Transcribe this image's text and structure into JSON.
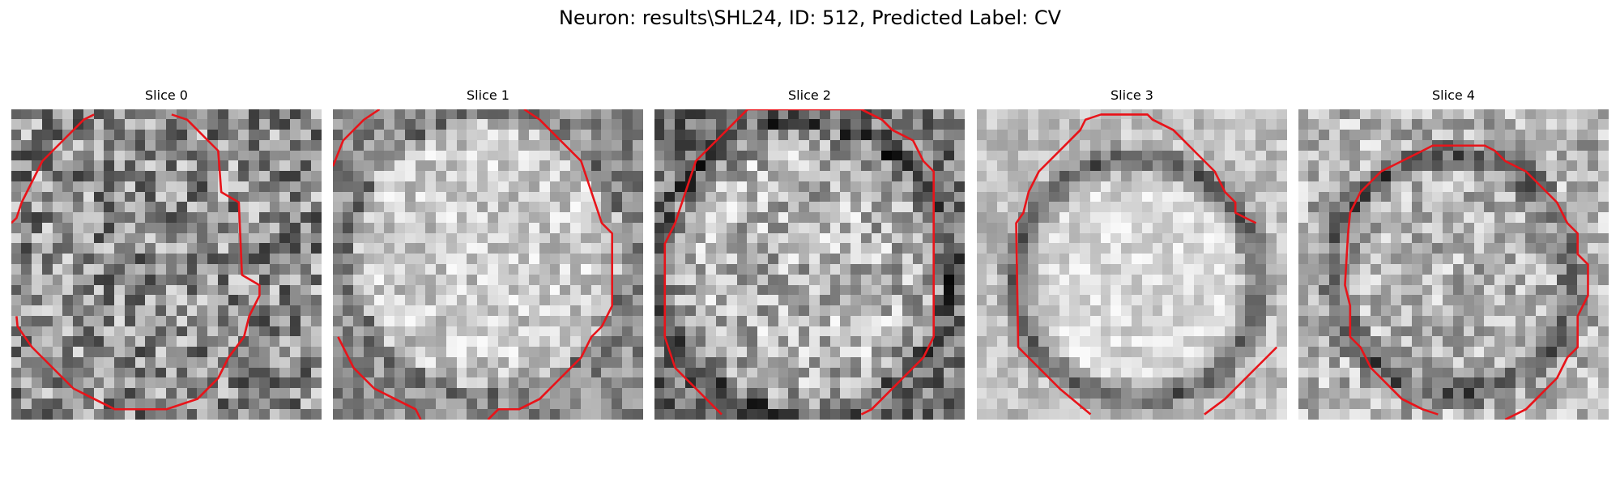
{
  "figure": {
    "title": "Neuron: results\\SHL24, ID: 512, Predicted Label: CV"
  },
  "slices": [
    {
      "label": "Slice 0"
    },
    {
      "label": "Slice 1"
    },
    {
      "label": "Slice 2"
    },
    {
      "label": "Slice 3"
    },
    {
      "label": "Slice 4"
    }
  ],
  "colors": {
    "contour": "#e8141a",
    "background": "#ffffff"
  }
}
